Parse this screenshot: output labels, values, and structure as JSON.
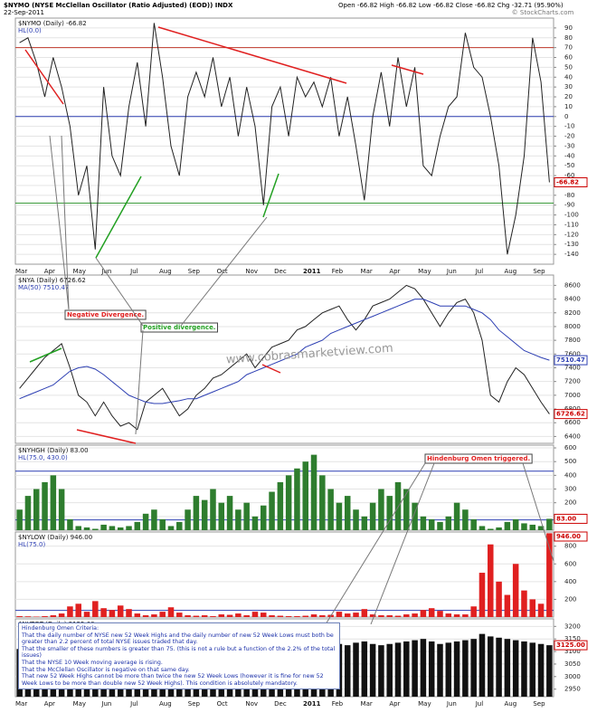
{
  "header": {
    "symbol_title": "$NYMO (NYSE McClellan Oscillator (Ratio Adjusted) (EOD)) INDX",
    "date": "22-Sep-2011",
    "quote": "Open -66.82 High -66.82 Low -66.82 Close -66.82 Chg -32.71 (95.90%)",
    "credit": "© StockCharts.com"
  },
  "criteria": {
    "title": "Hindenburg Omen Criteria:",
    "lines": [
      "That the daily number of NYSE new 52 Week Highs and the daily number of new 52 Week Lows must both be greater than 2.2 percent of total NYSE issues traded that day.",
      "That the smaller of these numbers is greater than 75. (this is not a rule but a function of the 2.2% of the total issues)",
      "That the NYSE 10 Week moving average is rising.",
      "That the McClellan Oscillator is negative on that same day.",
      "That new 52 Week Highs cannot be more than twice the new 52 Week Lows (however it is fine for new 52 Week Lows to be more than double new 52 Week Highs). This condition is absolutely mandatory."
    ]
  },
  "chart_data": [
    {
      "type": "line",
      "title": "$NYMO (Daily) -66.82",
      "subtitle": "HL(0.0)",
      "series": [
        {
          "color": "#222222",
          "values": [
            75,
            80,
            55,
            20,
            60,
            30,
            -10,
            -80,
            -50,
            -135,
            30,
            -40,
            -60,
            10,
            55,
            -10,
            95,
            40,
            -30,
            -60,
            20,
            45,
            20,
            60,
            10,
            40,
            -20,
            30,
            -10,
            -90,
            10,
            30,
            -20,
            40,
            20,
            35,
            10,
            40,
            -20,
            20,
            -30,
            -85,
            0,
            45,
            -10,
            60,
            10,
            50,
            -50,
            -60,
            -20,
            10,
            20,
            85,
            50,
            40,
            0,
            -50,
            -140,
            -100,
            -40,
            80,
            35,
            -66.82
          ]
        }
      ],
      "ylim": [
        -150,
        100
      ],
      "yticks": [
        90,
        80,
        70,
        60,
        50,
        40,
        30,
        20,
        10,
        0,
        -10,
        -20,
        -30,
        -40,
        -50,
        -60,
        -70,
        -80,
        -90,
        -100,
        -110,
        -120,
        -130,
        -140
      ],
      "hlines": [
        {
          "value": 70,
          "color": "#c0392b"
        },
        {
          "value": 0,
          "color": "#2d3fb3"
        },
        {
          "value": -88,
          "color": "#3a9a3a"
        }
      ],
      "last_label": "-66.82",
      "month_labels": [
        "Mar",
        "Apr",
        "May",
        "Jun",
        "Jul",
        "Aug",
        "Sep",
        "Oct",
        "Nov",
        "Dec",
        "2011",
        "Feb",
        "Mar",
        "Apr",
        "May",
        "Jun",
        "Jul",
        "Aug",
        "Sep"
      ]
    },
    {
      "type": "line",
      "title": "$NYA (Daily) 6726.62",
      "subtitle": "MA(50) 7510.47",
      "series": [
        {
          "color": "#222222",
          "values": [
            7100,
            7250,
            7400,
            7550,
            7650,
            7750,
            7400,
            7000,
            6900,
            6700,
            6900,
            6700,
            6550,
            6600,
            6500,
            6900,
            7000,
            7100,
            6900,
            6700,
            6800,
            7000,
            7100,
            7250,
            7300,
            7400,
            7500,
            7600,
            7400,
            7550,
            7700,
            7750,
            7800,
            7950,
            8000,
            8100,
            8200,
            8250,
            8300,
            8100,
            7950,
            8100,
            8300,
            8350,
            8400,
            8500,
            8600,
            8550,
            8400,
            8200,
            8000,
            8200,
            8350,
            8400,
            8200,
            7800,
            7000,
            6900,
            7200,
            7400,
            7300,
            7100,
            6900,
            6726.62
          ]
        },
        {
          "color": "#2d3fb3",
          "values": [
            6950,
            7000,
            7050,
            7100,
            7150,
            7250,
            7350,
            7400,
            7420,
            7380,
            7300,
            7200,
            7100,
            7000,
            6950,
            6900,
            6880,
            6880,
            6900,
            6920,
            6950,
            6950,
            7000,
            7050,
            7100,
            7150,
            7200,
            7300,
            7350,
            7400,
            7450,
            7500,
            7550,
            7600,
            7700,
            7750,
            7800,
            7900,
            7950,
            8000,
            8050,
            8100,
            8150,
            8200,
            8250,
            8300,
            8350,
            8400,
            8400,
            8350,
            8300,
            8300,
            8300,
            8300,
            8250,
            8200,
            8100,
            7950,
            7850,
            7750,
            7650,
            7600,
            7550,
            7510.47
          ]
        }
      ],
      "ylim": [
        6300,
        8750
      ],
      "yticks": [
        6400,
        6600,
        6800,
        7000,
        7200,
        7400,
        7600,
        7800,
        8000,
        8200,
        8400,
        8600
      ],
      "last_labels": [
        "6726.62",
        "7510.47"
      ],
      "annotations": [
        "Negative Divergence.",
        "Positive divergence.",
        "www.cobrasmarketview.com"
      ]
    },
    {
      "type": "bar",
      "title": "$NYHGH (Daily) 83.00",
      "subtitle": "HL(75.0, 430.0)",
      "color": "#2e7d2e",
      "values": [
        150,
        250,
        300,
        350,
        400,
        300,
        80,
        30,
        20,
        10,
        40,
        30,
        20,
        30,
        60,
        120,
        150,
        80,
        30,
        60,
        150,
        250,
        220,
        300,
        200,
        250,
        150,
        200,
        100,
        180,
        280,
        350,
        400,
        450,
        500,
        550,
        400,
        300,
        200,
        250,
        150,
        100,
        200,
        300,
        250,
        350,
        300,
        200,
        100,
        80,
        60,
        100,
        200,
        150,
        80,
        30,
        10,
        20,
        60,
        80,
        50,
        40,
        30,
        83
      ],
      "ylim": [
        0,
        620
      ],
      "yticks": [
        100,
        200,
        300,
        400,
        500,
        600
      ],
      "hlines": [
        {
          "value": 75,
          "color": "#2d3fb3"
        },
        {
          "value": 430,
          "color": "#2d3fb3"
        }
      ],
      "last_label": "83.00",
      "annotations": [
        "Hindenburg Omen triggered."
      ]
    },
    {
      "type": "bar",
      "title": "$NYLOW (Daily) 946.00",
      "subtitle": "HL(75.0)",
      "color": "#e02020",
      "values": [
        10,
        8,
        5,
        10,
        20,
        40,
        120,
        150,
        60,
        180,
        100,
        80,
        130,
        90,
        40,
        20,
        30,
        60,
        110,
        50,
        20,
        15,
        20,
        10,
        30,
        25,
        40,
        20,
        60,
        50,
        20,
        15,
        10,
        10,
        15,
        30,
        20,
        25,
        60,
        40,
        50,
        90,
        30,
        20,
        20,
        15,
        30,
        40,
        80,
        100,
        70,
        40,
        30,
        30,
        120,
        500,
        820,
        400,
        250,
        600,
        300,
        200,
        150,
        946
      ],
      "ylim": [
        0,
        960
      ],
      "yticks": [
        200,
        400,
        600,
        800
      ],
      "hlines": [
        {
          "value": 75,
          "color": "#2d3fb3"
        }
      ],
      "last_label": "946.00"
    },
    {
      "type": "bar",
      "title": "$NYTOT (Daily) 3125.00",
      "color": "#111111",
      "values": [
        3110,
        3120,
        3115,
        3125,
        3130,
        3120,
        3110,
        3105,
        3100,
        3110,
        3115,
        3120,
        3110,
        3105,
        3115,
        3120,
        3125,
        3110,
        3115,
        3120,
        3125,
        3130,
        3120,
        3115,
        3125,
        3130,
        3135,
        3120,
        3125,
        3130,
        3135,
        3140,
        3130,
        3125,
        3135,
        3140,
        3145,
        3135,
        3130,
        3125,
        3135,
        3140,
        3130,
        3125,
        3130,
        3135,
        3140,
        3145,
        3150,
        3140,
        3130,
        3135,
        3140,
        3145,
        3150,
        3170,
        3160,
        3155,
        3150,
        3145,
        3140,
        3135,
        3130,
        3125
      ],
      "ylim": [
        2920,
        3230
      ],
      "yticks": [
        2950,
        3000,
        3050,
        3100,
        3150,
        3200
      ],
      "last_label": "3125.00",
      "month_labels": [
        "Mar",
        "Apr",
        "May",
        "Jun",
        "Jul",
        "Aug",
        "Sep",
        "Oct",
        "Nov",
        "Dec",
        "2011",
        "Feb",
        "Mar",
        "Apr",
        "May",
        "Jun",
        "Jul",
        "Aug",
        "Sep"
      ]
    }
  ]
}
